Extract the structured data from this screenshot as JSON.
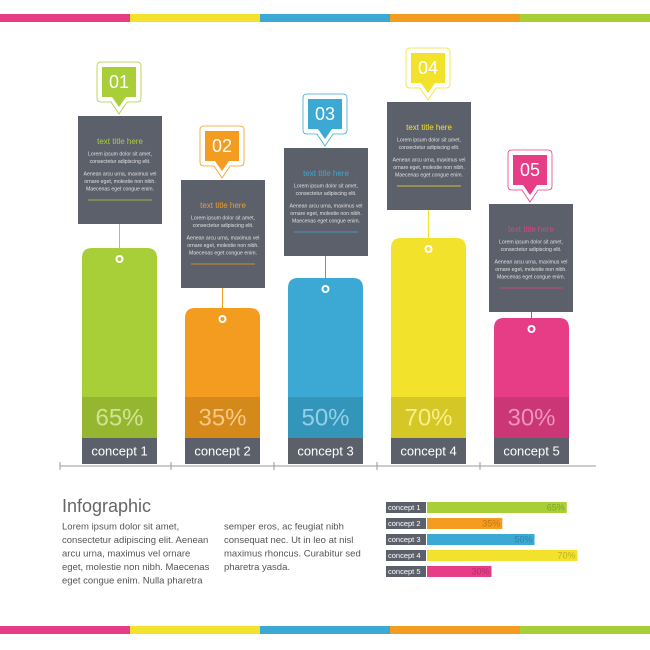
{
  "chart_data": {
    "type": "bar",
    "categories": [
      "concept 1",
      "concept 2",
      "concept 3",
      "concept 4",
      "concept 5"
    ],
    "values": [
      65,
      35,
      50,
      70,
      30
    ],
    "value_labels": [
      "65%",
      "35%",
      "50%",
      "70%",
      "30%"
    ],
    "colors": [
      "#a9cf38",
      "#f39c1f",
      "#3ba9d4",
      "#f2e22b",
      "#e63d86"
    ]
  },
  "cards": {
    "numbers": [
      "01",
      "02",
      "03",
      "04",
      "05"
    ],
    "title": "text title here",
    "lines": [
      "Lorem ipsum dolor sit amet,",
      "consectetur adipiscing elit.",
      "Aenean arcu urna, maximus vel",
      "ornare eget, molestie non nibh.",
      "Maecenas eget congue enim."
    ]
  },
  "text": {
    "heading": "Infographic",
    "left": [
      "Lorem ipsum dolor sit amet,",
      "consectetur adipiscing elit. Aenean",
      "arcu urna, maximus vel ornare",
      "eget, molestie non nibh. Maecenas",
      "eget congue enim. Nulla pharetra"
    ],
    "right": [
      "semper eros, ac feugiat nibh",
      "consequat nec. Ut in leo at nisl",
      "maximus rhoncus. Curabitur sed",
      "pharetra yasda."
    ]
  }
}
